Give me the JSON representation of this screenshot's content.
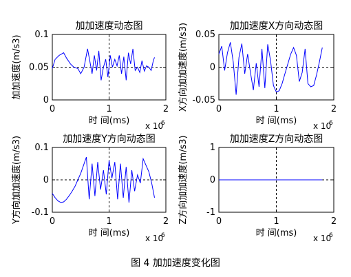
{
  "caption": "图 4  加加速度变化图",
  "chart_data": [
    {
      "type": "line",
      "title": "加加速度动态图",
      "xlabel": "时 间(ms)",
      "ylabel": "加加速度(m/s3)",
      "x_multiplier": "x 10",
      "x_multiplier_exp": "6",
      "xlim": [
        0,
        2
      ],
      "ylim": [
        0,
        0.1
      ],
      "xticks": [
        "0",
        "1",
        "2"
      ],
      "yticks": [
        "0",
        "0.05",
        "0.1"
      ],
      "ytick_values": [
        0,
        0.05,
        0.1
      ],
      "line_color": "#0000ff",
      "ref_lines": {
        "x": 1,
        "y": 0.05
      },
      "x": [
        0.0,
        0.05,
        0.12,
        0.2,
        0.25,
        0.32,
        0.38,
        0.45,
        0.5,
        0.56,
        0.62,
        0.66,
        0.7,
        0.74,
        0.78,
        0.82,
        0.86,
        0.9,
        0.94,
        0.98,
        1.02,
        1.06,
        1.1,
        1.14,
        1.18,
        1.22,
        1.26,
        1.3,
        1.34,
        1.38,
        1.42,
        1.46,
        1.5,
        1.54,
        1.58,
        1.62,
        1.66,
        1.7,
        1.74,
        1.78,
        1.8
      ],
      "y": [
        0.048,
        0.062,
        0.068,
        0.072,
        0.064,
        0.055,
        0.05,
        0.048,
        0.04,
        0.05,
        0.078,
        0.06,
        0.04,
        0.068,
        0.045,
        0.075,
        0.03,
        0.05,
        0.062,
        0.035,
        0.068,
        0.05,
        0.062,
        0.052,
        0.068,
        0.04,
        0.066,
        0.03,
        0.072,
        0.055,
        0.078,
        0.045,
        0.05,
        0.042,
        0.06,
        0.044,
        0.052,
        0.05,
        0.045,
        0.06,
        0.065
      ]
    },
    {
      "type": "line",
      "title": "加加速度X方向动态图",
      "xlabel": "时 间(ms)",
      "ylabel": "X方向加加速度(m/s3)",
      "x_multiplier": "x 10",
      "x_multiplier_exp": "6",
      "xlim": [
        0,
        2
      ],
      "ylim": [
        -0.05,
        0.05
      ],
      "xticks": [
        "0",
        "1",
        "2"
      ],
      "yticks": [
        "-0.05",
        "0",
        "0.05"
      ],
      "ytick_values": [
        -0.05,
        0,
        0.05
      ],
      "line_color": "#0000ff",
      "ref_lines": {
        "x": 1,
        "y": 0
      },
      "x": [
        0.0,
        0.05,
        0.1,
        0.15,
        0.2,
        0.25,
        0.3,
        0.35,
        0.4,
        0.45,
        0.5,
        0.55,
        0.6,
        0.65,
        0.7,
        0.75,
        0.8,
        0.85,
        0.9,
        0.95,
        1.0,
        1.05,
        1.1,
        1.15,
        1.2,
        1.25,
        1.3,
        1.35,
        1.4,
        1.45,
        1.5,
        1.55,
        1.6,
        1.65,
        1.7,
        1.75,
        1.8
      ],
      "y": [
        0.02,
        0.032,
        -0.005,
        0.022,
        0.038,
        0.008,
        -0.042,
        0.015,
        0.036,
        -0.01,
        0.02,
        -0.008,
        -0.035,
        0.006,
        -0.03,
        0.028,
        -0.032,
        0.035,
        0.01,
        -0.028,
        -0.038,
        -0.036,
        -0.025,
        -0.01,
        0.005,
        0.02,
        0.03,
        0.018,
        -0.022,
        -0.008,
        0.028,
        -0.025,
        -0.03,
        -0.028,
        -0.012,
        0.008,
        0.03
      ]
    },
    {
      "type": "line",
      "title": "加加速度Y方向动态图",
      "xlabel": "时 间(ms)",
      "ylabel": "Y方向加加速度(m/s3)",
      "x_multiplier": "x 10",
      "x_multiplier_exp": "6",
      "xlim": [
        0,
        2
      ],
      "ylim": [
        -0.1,
        0.1
      ],
      "xticks": [
        "0",
        "1",
        "2"
      ],
      "yticks": [
        "-0.1",
        "0",
        "0.1"
      ],
      "ytick_values": [
        -0.1,
        0,
        0.1
      ],
      "line_color": "#0000ff",
      "ref_lines": {
        "x": 1,
        "y": 0
      },
      "x": [
        0.0,
        0.05,
        0.1,
        0.15,
        0.2,
        0.25,
        0.3,
        0.35,
        0.4,
        0.45,
        0.5,
        0.55,
        0.6,
        0.65,
        0.7,
        0.75,
        0.8,
        0.85,
        0.9,
        0.95,
        1.0,
        1.05,
        1.1,
        1.15,
        1.2,
        1.25,
        1.3,
        1.35,
        1.4,
        1.45,
        1.5,
        1.55,
        1.6,
        1.65,
        1.7,
        1.75,
        1.8
      ],
      "y": [
        -0.042,
        -0.055,
        -0.065,
        -0.07,
        -0.068,
        -0.06,
        -0.048,
        -0.035,
        -0.02,
        0.0,
        0.02,
        0.045,
        0.07,
        -0.06,
        0.05,
        -0.05,
        0.055,
        -0.03,
        0.03,
        -0.045,
        0.06,
        0.005,
        0.055,
        -0.06,
        0.05,
        -0.055,
        0.04,
        -0.07,
        0.03,
        -0.035,
        0.015,
        -0.01,
        0.065,
        0.045,
        0.025,
        -0.01,
        -0.055
      ]
    },
    {
      "type": "line",
      "title": "加加速度Z方向动态图",
      "xlabel": "时 间(ms)",
      "ylabel": "Z方向加加速度(m/s3)",
      "x_multiplier": "x 10",
      "x_multiplier_exp": "6",
      "xlim": [
        0,
        2
      ],
      "ylim": [
        -1,
        1
      ],
      "xticks": [
        "0",
        "1",
        "2"
      ],
      "yticks": [
        "-1",
        "0",
        "1"
      ],
      "ytick_values": [
        -1,
        0,
        1
      ],
      "line_color": "#0000ff",
      "ref_lines": {
        "x": 1,
        "y": 0
      },
      "x": [
        0.0,
        1.8
      ],
      "y": [
        0.0,
        0.0
      ]
    }
  ]
}
